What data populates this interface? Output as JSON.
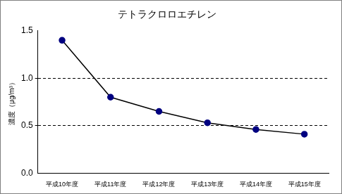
{
  "chart_data": {
    "type": "line",
    "title": "テトラクロロエチレン",
    "y_label": "濃度（μg/m³）",
    "categories": [
      "平成10年度",
      "平成11年度",
      "平成12年度",
      "平成13年度",
      "平成14年度",
      "平成15年度"
    ],
    "values": [
      1.4,
      0.8,
      0.65,
      0.53,
      0.46,
      0.41
    ],
    "color": "#000000",
    "marker": "circle",
    "ylim": [
      0,
      1.5
    ],
    "yticks": [
      {
        "value": 0,
        "label": "0.0"
      },
      0.5,
      {
        "value": 1,
        "label": "1.0"
      },
      1.5
    ],
    "grid": true
  }
}
